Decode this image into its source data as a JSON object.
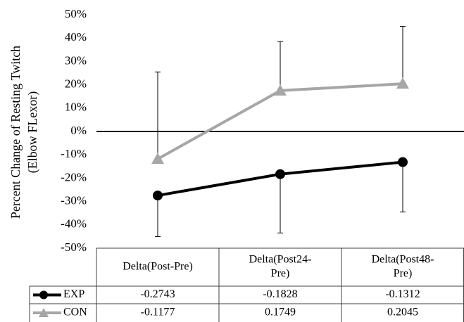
{
  "chart_data": {
    "type": "line",
    "ylabel_lines": [
      "Percent Change of Resting Twitch",
      "(Elbow FLexor)"
    ],
    "ylim": [
      -0.5,
      0.5
    ],
    "yticks": [
      0.5,
      0.4,
      0.3,
      0.2,
      0.1,
      0,
      -0.1,
      -0.2,
      -0.3,
      -0.4,
      -0.5
    ],
    "ytick_labels": [
      "50%",
      "40%",
      "30%",
      "20%",
      "10%",
      "0%",
      "-10%",
      "-20%",
      "-30%",
      "-40%",
      "-50%"
    ],
    "grid": false,
    "categories": [
      [
        "Delta(Post-Pre)"
      ],
      [
        "Delta(Post24-",
        "Pre)"
      ],
      [
        "Delta(Post48-",
        "Pre)"
      ]
    ],
    "series": [
      {
        "name": "EXP",
        "marker": "circle",
        "color": "#000000",
        "values": [
          -0.2743,
          -0.1828,
          -0.1312
        ],
        "value_labels": [
          "-0.2743",
          "-0.1828",
          "-0.1312"
        ],
        "error_lower": [
          -0.45,
          -0.435,
          -0.345
        ],
        "error_upper": [
          -0.2743,
          -0.1828,
          -0.1312
        ]
      },
      {
        "name": "CON",
        "marker": "triangle",
        "color": "#a6a6a6",
        "values": [
          -0.1177,
          0.1749,
          0.2045
        ],
        "value_labels": [
          "-0.1177",
          "0.1749",
          "0.2045"
        ],
        "error_lower": [
          -0.1177,
          0.1749,
          0.2045
        ],
        "error_upper": [
          0.255,
          0.385,
          0.45
        ]
      }
    ]
  }
}
